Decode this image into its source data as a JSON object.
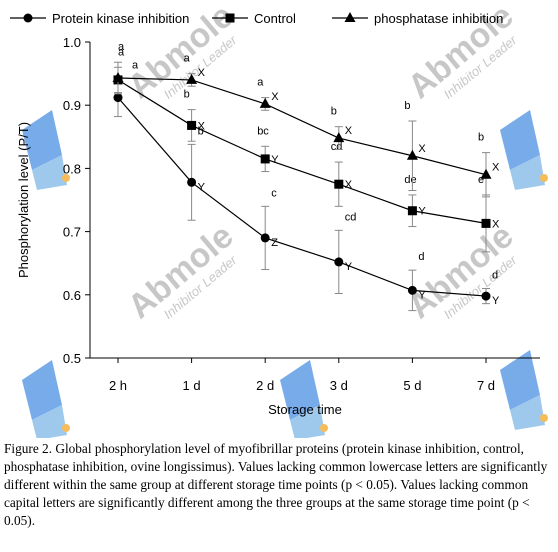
{
  "chart_data": {
    "type": "line",
    "categories": [
      "2 h",
      "1 d",
      "2 d",
      "3 d",
      "5 d",
      "7 d"
    ],
    "ylabel": "Phosphorylation level (P/T)",
    "xlabel": "Storage time",
    "ylim": [
      0.5,
      1.0
    ],
    "yticks": [
      "0.5",
      "0.6",
      "0.7",
      "0.8",
      "0.9",
      "1.0"
    ],
    "legend_position": "top",
    "series": [
      {
        "name": "Protein kinase inhibition",
        "marker": "circle",
        "values": [
          0.912,
          0.778,
          0.69,
          0.652,
          0.607,
          0.598
        ],
        "errors": [
          0.03,
          0.06,
          0.05,
          0.05,
          0.032,
          0.012
        ],
        "lower_letters": [
          "a",
          "b",
          "c",
          "cd",
          "d",
          "d"
        ],
        "upper_letters": [
          "",
          "Y",
          "Z",
          "Y",
          "Y",
          "Y"
        ]
      },
      {
        "name": "Control",
        "marker": "square",
        "values": [
          0.94,
          0.868,
          0.815,
          0.775,
          0.733,
          0.713
        ],
        "errors": [
          0.02,
          0.025,
          0.02,
          0.035,
          0.025,
          0.045
        ],
        "lower_letters": [
          "a",
          "b",
          "bc",
          "cd",
          "de",
          "e"
        ],
        "upper_letters": [
          "",
          "X",
          "Y",
          "X",
          "Y",
          "X"
        ]
      },
      {
        "name": "phosphatase inhibition",
        "marker": "triangle",
        "values": [
          0.943,
          0.94,
          0.902,
          0.848,
          0.82,
          0.79
        ],
        "errors": [
          0.025,
          0.01,
          0.01,
          0.018,
          0.055,
          0.035
        ],
        "lower_letters": [
          "a",
          "a",
          "a",
          "b",
          "b",
          "b"
        ],
        "upper_letters": [
          "",
          "X",
          "X",
          "X",
          "X",
          "X"
        ]
      }
    ]
  },
  "watermark": {
    "brand": "Abmole",
    "tagline": "Inhibitor Leader",
    "colors": [
      "#4a90e2",
      "#7fb8e6",
      "#f5a623"
    ]
  },
  "caption": "Figure 2. Global phosphorylation level of myofibrillar proteins (protein kinase inhibition, control, phosphatase inhibition, ovine longissimus). Values lacking common lowercase letters are significantly different within the same group at different storage time points (p < 0.05). Values lacking common capital letters are significantly different among the three groups at the same storage time point (p < 0.05)."
}
